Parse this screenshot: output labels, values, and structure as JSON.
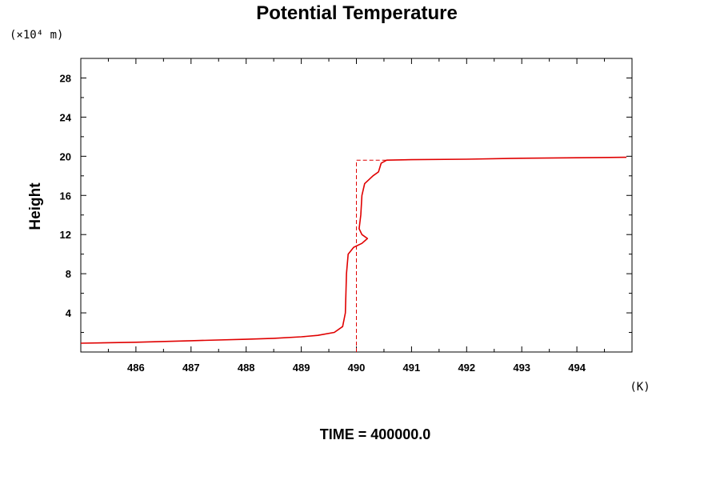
{
  "chart_data": {
    "type": "line",
    "title": "Potential Temperature",
    "ylabel": "Height",
    "y_unit": "(×10⁴ m)",
    "x_unit": "(K)",
    "footer": "TIME = 400000.0",
    "xlim": [
      485,
      495
    ],
    "ylim": [
      0,
      30
    ],
    "x_ticks": [
      486,
      487,
      488,
      489,
      490,
      491,
      492,
      493,
      494
    ],
    "y_ticks": [
      4,
      8,
      12,
      16,
      20,
      24,
      28
    ],
    "grid": false,
    "colors": {
      "line": "#e00000",
      "axis": "#000000"
    },
    "series": [
      {
        "style": "solid",
        "x": [
          485.0,
          486.0,
          487.0,
          488.0,
          488.5,
          489.0,
          489.3,
          489.6,
          489.75,
          489.8,
          489.82,
          489.85,
          489.95,
          490.1,
          490.2,
          490.1,
          490.05,
          490.08,
          490.1,
          490.15,
          490.3,
          490.4,
          490.45,
          490.55,
          491.0,
          492.0,
          493.0,
          494.0,
          494.9
        ],
        "y": [
          0.9,
          1.0,
          1.15,
          1.3,
          1.4,
          1.55,
          1.7,
          2.0,
          2.6,
          4.0,
          8.0,
          10.0,
          10.7,
          11.1,
          11.6,
          12.0,
          12.6,
          14.0,
          16.0,
          17.2,
          18.0,
          18.4,
          19.3,
          19.6,
          19.65,
          19.7,
          19.8,
          19.85,
          19.9
        ]
      },
      {
        "style": "dashed",
        "x": [
          490.0,
          490.0,
          490.55
        ],
        "y": [
          0.0,
          19.6,
          19.6
        ]
      }
    ]
  }
}
